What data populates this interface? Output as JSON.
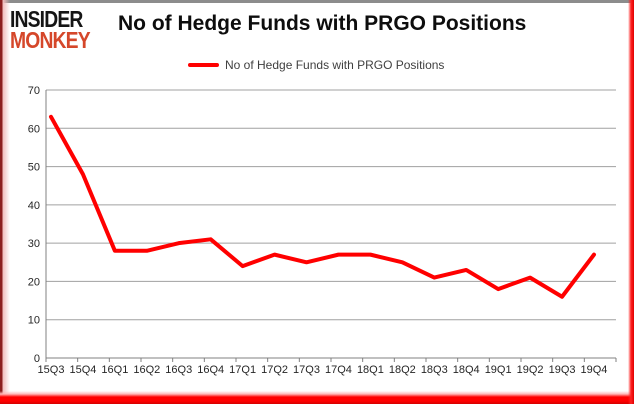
{
  "window": {
    "frame_color_bottom": "#ff0000",
    "frame_color_left": "#8c1d1d",
    "frame_color_top": "#8c8c8c"
  },
  "logo": {
    "line1": "INSIDER",
    "line2": "MONKEY",
    "line1_color": "#151515",
    "line2_color": "#d5472a"
  },
  "title": "No of Hedge Funds with PRGO Positions",
  "legend": {
    "label": "No of Hedge Funds with PRGO Positions",
    "swatch_color": "#ff0000"
  },
  "chart_data": {
    "type": "line",
    "title": "No of Hedge Funds with PRGO Positions",
    "categories": [
      "15Q3",
      "15Q4",
      "16Q1",
      "16Q2",
      "16Q3",
      "16Q4",
      "17Q1",
      "17Q2",
      "17Q3",
      "17Q4",
      "18Q1",
      "18Q2",
      "18Q3",
      "18Q4",
      "19Q1",
      "19Q2",
      "19Q3",
      "19Q4"
    ],
    "series": [
      {
        "name": "No of Hedge Funds with PRGO Positions",
        "color": "#ff0000",
        "values": [
          63,
          48,
          28,
          28,
          30,
          31,
          24,
          27,
          25,
          27,
          27,
          25,
          21,
          23,
          18,
          21,
          16,
          27
        ]
      }
    ],
    "xlabel": "",
    "ylabel": "",
    "ylim": [
      0,
      70
    ],
    "yticks": [
      0,
      10,
      20,
      30,
      40,
      50,
      60,
      70
    ],
    "grid": true,
    "gridline_color": "#a0a0a0",
    "axis_color": "#808080",
    "tick_label_color": "#262626",
    "legend_position": "top"
  }
}
